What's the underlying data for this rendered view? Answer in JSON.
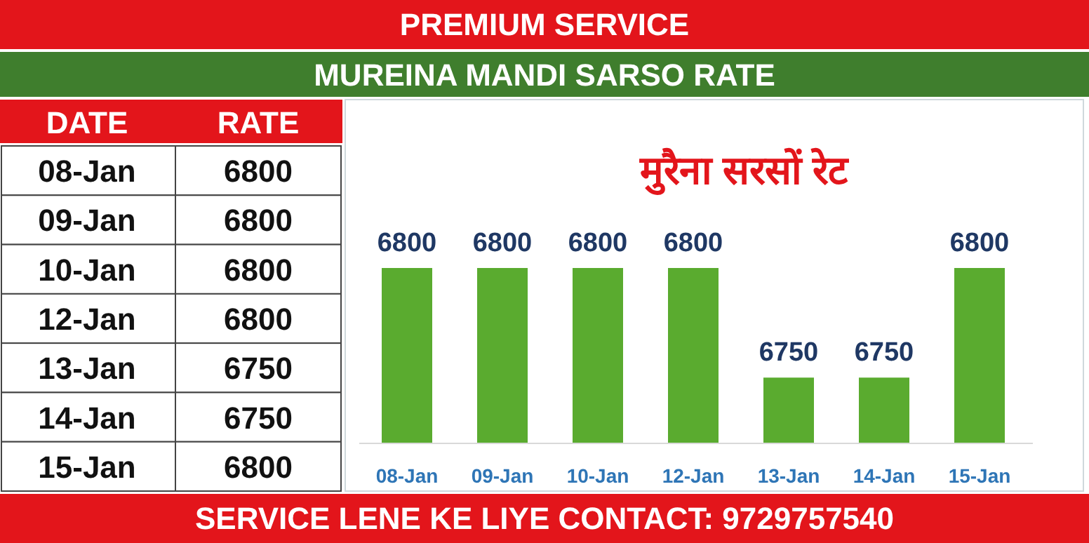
{
  "chart_data": [
    {
      "type": "other",
      "title": "PREMIUM SERVICE",
      "subtitle": "MUREINA MANDI SARSO RATE",
      "categories": [
        "08-Jan",
        "09-Jan",
        "10-Jan",
        "12-Jan",
        "13-Jan",
        "14-Jan",
        "15-Jan"
      ],
      "values": [
        6800,
        6800,
        6800,
        6800,
        6750,
        6750,
        6800
      ],
      "data_labels": true,
      "annotations": [
        "DATE",
        "RATE",
        "SERVICE LENE KE LIYE CONTACT: 9729757540"
      ]
    },
    {
      "type": "bar",
      "title": "मुरैना सरसों रेट",
      "categories": [
        "08-Jan",
        "09-Jan",
        "10-Jan",
        "12-Jan",
        "13-Jan",
        "14-Jan",
        "15-Jan"
      ],
      "values": [
        6800,
        6800,
        6800,
        6800,
        6750,
        6750,
        6800
      ],
      "color": "#5aab2f",
      "ylim": [
        6720,
        6800
      ],
      "data_labels": true,
      "grid": false
    }
  ]
}
